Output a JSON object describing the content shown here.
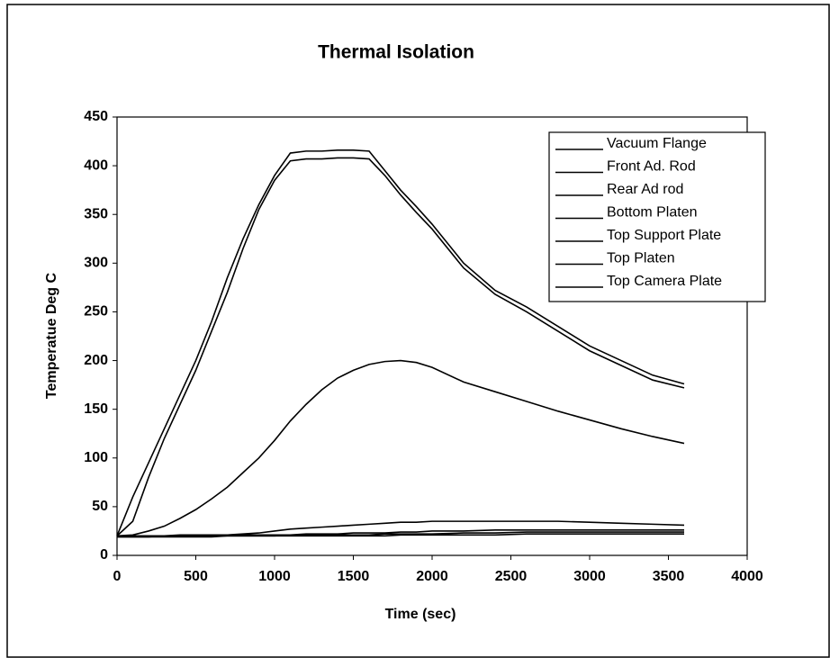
{
  "chart_data": {
    "type": "line",
    "title": "Thermal Isolation",
    "x_label": "Time (sec)",
    "y_label": "Temperatue Deg C",
    "x": [
      0,
      100,
      200,
      300,
      400,
      500,
      600,
      700,
      800,
      900,
      1000,
      1100,
      1200,
      1300,
      1400,
      1500,
      1600,
      1700,
      1800,
      1900,
      2000,
      2200,
      2400,
      2600,
      2800,
      3000,
      3200,
      3400,
      3600
    ],
    "series": [
      {
        "name": "Vacuum Flange",
        "color": "#000000",
        "values": [
          20,
          60,
          95,
          130,
          165,
          200,
          240,
          285,
          325,
          360,
          390,
          413,
          415,
          415,
          416,
          416,
          415,
          395,
          375,
          358,
          340,
          300,
          272,
          255,
          235,
          215,
          200,
          185,
          176
        ]
      },
      {
        "name": "Front Ad. Rod",
        "color": "#000000",
        "values": [
          20,
          35,
          80,
          120,
          155,
          190,
          230,
          270,
          315,
          355,
          385,
          405,
          407,
          407,
          408,
          408,
          407,
          390,
          370,
          352,
          335,
          295,
          268,
          250,
          230,
          210,
          195,
          180,
          172
        ]
      },
      {
        "name": "Rear Ad rod",
        "color": "#000000",
        "values": [
          20,
          21,
          25,
          30,
          38,
          47,
          58,
          70,
          85,
          100,
          118,
          138,
          155,
          170,
          182,
          190,
          196,
          199,
          200,
          198,
          193,
          178,
          168,
          158,
          148,
          139,
          130,
          122,
          115
        ]
      },
      {
        "name": "Bottom Platen",
        "color": "#000000",
        "values": [
          20,
          20,
          20,
          20,
          21,
          21,
          21,
          21,
          22,
          23,
          25,
          27,
          28,
          29,
          30,
          31,
          32,
          33,
          34,
          34,
          35,
          35,
          35,
          35,
          35,
          34,
          33,
          32,
          31
        ]
      },
      {
        "name": "Top Support Plate",
        "color": "#000000",
        "values": [
          20,
          20,
          20,
          20,
          20,
          20,
          20,
          21,
          21,
          21,
          21,
          21,
          22,
          22,
          22,
          23,
          23,
          23,
          24,
          24,
          25,
          25,
          26,
          26,
          26,
          26,
          26,
          26,
          26
        ]
      },
      {
        "name": "Top Platen",
        "color": "#000000",
        "values": [
          19,
          19,
          19,
          20,
          20,
          20,
          20,
          20,
          20,
          20,
          20,
          21,
          21,
          21,
          21,
          21,
          21,
          22,
          22,
          22,
          22,
          23,
          23,
          24,
          24,
          24,
          24,
          24,
          24
        ]
      },
      {
        "name": "Top Camera Plate",
        "color": "#000000",
        "values": [
          19,
          19,
          19,
          19,
          19,
          19,
          19,
          20,
          20,
          20,
          20,
          20,
          20,
          20,
          20,
          20,
          20,
          20,
          21,
          21,
          21,
          21,
          21,
          22,
          22,
          22,
          22,
          22,
          22
        ]
      }
    ],
    "xlim": [
      0,
      4000
    ],
    "xticks": [
      0,
      500,
      1000,
      1500,
      2000,
      2500,
      3000,
      3500,
      4000
    ],
    "ylim": [
      0,
      450
    ],
    "yticks": [
      0,
      50,
      100,
      150,
      200,
      250,
      300,
      350,
      400,
      450
    ]
  }
}
